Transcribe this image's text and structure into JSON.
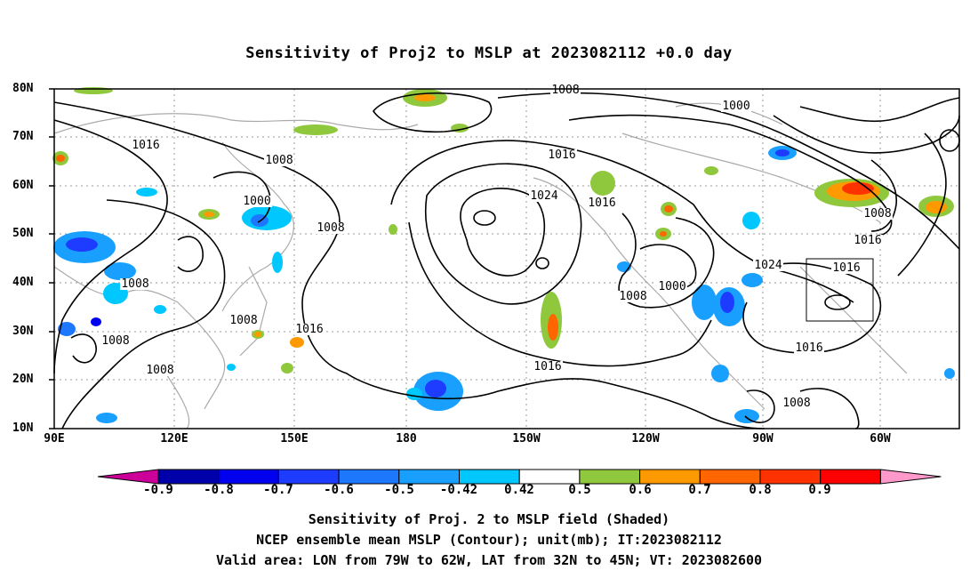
{
  "title": "Sensitivity of Proj2 to MSLP at 2023082112 +0.0 day",
  "lat_labels": [
    "80N",
    "70N",
    "60N",
    "50N",
    "40N",
    "30N",
    "20N",
    "10N"
  ],
  "lon_labels": [
    "90E",
    "120E",
    "150E",
    "180",
    "150W",
    "120W",
    "90W",
    "60W"
  ],
  "contour_labels": [
    "1008",
    "1000",
    "1016",
    "1008",
    "1000",
    "1008",
    "1024",
    "1016",
    "1016",
    "1008",
    "1016",
    "1008",
    "1016",
    "1024",
    "1000",
    "1008",
    "1016",
    "1008",
    "1008",
    "1016",
    "1016",
    "1016",
    "1008",
    "1008"
  ],
  "colorbar": {
    "labels": [
      "-0.9",
      "-0.8",
      "-0.7",
      "-0.6",
      "-0.5",
      "-0.42",
      "0.42",
      "0.5",
      "0.6",
      "0.7",
      "0.8",
      "0.9"
    ],
    "colors": [
      "#cc0099",
      "#0000aa",
      "#0000ee",
      "#1e3cff",
      "#1e78ff",
      "#19a0ff",
      "#00c8ff",
      "#ffffff",
      "#8fc83c",
      "#ff9900",
      "#ff6600",
      "#ff3300",
      "#ff0000",
      "#ff99cc"
    ]
  },
  "valid_box": {
    "lon_min": "79W",
    "lon_max": "62W",
    "lat_min": "32N",
    "lat_max": "45N"
  },
  "footer": [
    "Sensitivity of Proj. 2 to MSLP field (Shaded)",
    "NCEP ensemble mean MSLP (Contour); unit(mb); IT:2023082112",
    "Valid area: LON from 79W to 62W, LAT from 32N to 45N; VT: 2023082600"
  ]
}
